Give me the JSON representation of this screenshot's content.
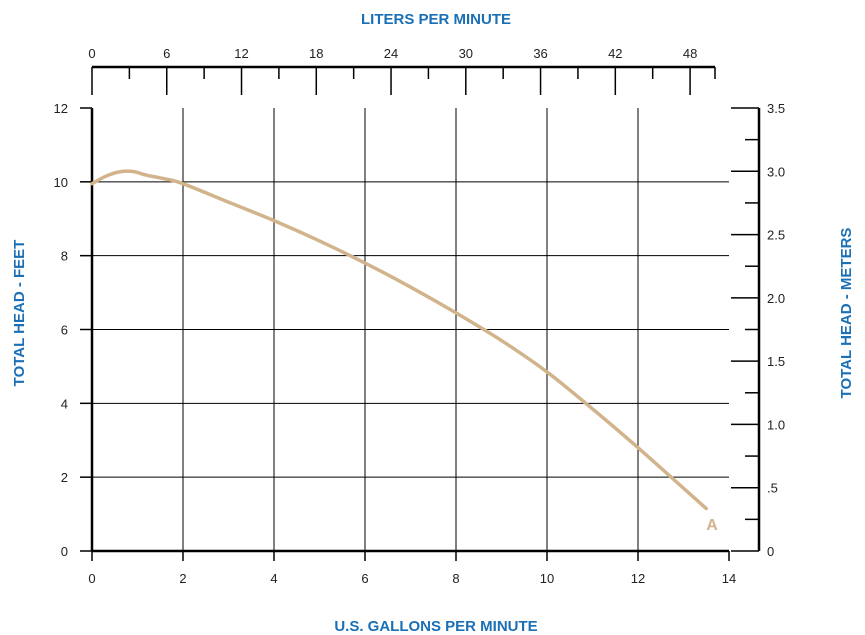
{
  "chart_data": {
    "type": "line",
    "title": "",
    "xlabel": "U.S. GALLONS PER MINUTE",
    "ylabel": "TOTAL HEAD - FEET",
    "x2label": "LITERS PER MINUTE",
    "y2label": "TOTAL HEAD - METERS",
    "xlim": [
      0,
      14
    ],
    "ylim": [
      0,
      12
    ],
    "x2lim": [
      0,
      50
    ],
    "y2lim": [
      0,
      3.5
    ],
    "grid": true,
    "x_ticks": [
      "0",
      "2",
      "4",
      "6",
      "8",
      "10",
      "12",
      "14"
    ],
    "y_ticks": [
      "0",
      "2",
      "4",
      "6",
      "8",
      "10",
      "12"
    ],
    "x2_ticks": [
      "0",
      "6",
      "12",
      "18",
      "24",
      "30",
      "36",
      "42",
      "48"
    ],
    "y2_ticks": [
      "0",
      ".5",
      "1.0",
      "1.5",
      "2.0",
      "2.5",
      "3.0",
      "3.5"
    ],
    "series": [
      {
        "name": "A",
        "color": "#d2b48c",
        "x": [
          0,
          0.3,
          0.6,
          0.9,
          1.2,
          1.6,
          2,
          3,
          4,
          5,
          6,
          7,
          8,
          9,
          10,
          11,
          12,
          13,
          13.5
        ],
        "y": [
          9.95,
          10.15,
          10.27,
          10.28,
          10.18,
          10.08,
          9.95,
          9.45,
          8.95,
          8.4,
          7.8,
          7.15,
          6.45,
          5.7,
          4.85,
          3.85,
          2.8,
          1.7,
          1.15
        ]
      }
    ]
  },
  "colors": {
    "axis_title": "#1a6fb5",
    "axis": "#000000",
    "grid": "#000000",
    "curve": "#d2b48c"
  }
}
